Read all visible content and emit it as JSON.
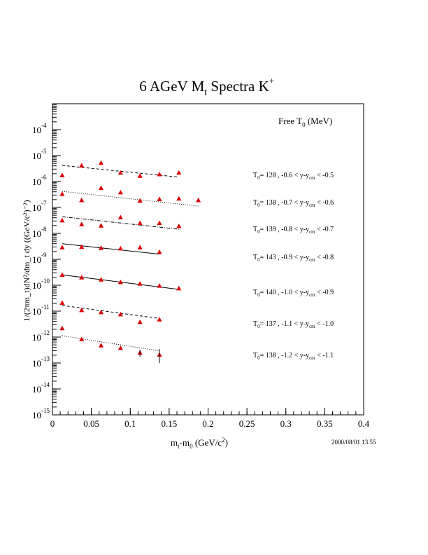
{
  "chart_data": {
    "type": "scatter",
    "title_main": "6 AGeV M",
    "title_sub": "t",
    "title_rest": " Spectra K",
    "title_sup": "+",
    "legend_title_main": "Free T",
    "legend_title_sub": "0",
    "legend_title_rest": " (MeV)",
    "xlabel_main": "m",
    "xlabel_sub1": "t",
    "xlabel_mid": "-m",
    "xlabel_sub2": "0",
    "xlabel_units": " (GeV/c",
    "xlabel_sup": "2",
    "xlabel_close": ")",
    "ylabel": "1/(2πm_t)dN²/dm_t dy ((GeV/c²)⁻²)",
    "timestamp": "2000/08/01   13.55",
    "xlim": [
      0,
      0.4
    ],
    "ylim_exp": [
      -15,
      -3
    ],
    "x_ticks": [
      "0",
      "0.05",
      "0.1",
      "0.15",
      "0.2",
      "0.25",
      "0.3",
      "0.35",
      "0.4"
    ],
    "x_tick_values": [
      0,
      0.05,
      0.1,
      0.15,
      0.2,
      0.25,
      0.3,
      0.35,
      0.4
    ],
    "y_ticks": [
      {
        "base": "10",
        "exp": "-4"
      },
      {
        "base": "10",
        "exp": "-5"
      },
      {
        "base": "10",
        "exp": "-6"
      },
      {
        "base": "10",
        "exp": "-7"
      },
      {
        "base": "10",
        "exp": "-8"
      },
      {
        "base": "10",
        "exp": "-9"
      },
      {
        "base": "10",
        "exp": "-10"
      },
      {
        "base": "10",
        "exp": "-11"
      },
      {
        "base": "10",
        "exp": "-12"
      },
      {
        "base": "10",
        "exp": "-13"
      },
      {
        "base": "10",
        "exp": "-14"
      },
      {
        "base": "10",
        "exp": "-15"
      }
    ],
    "y_tick_exponents": [
      -4,
      -5,
      -6,
      -7,
      -8,
      -9,
      -10,
      -11,
      -12,
      -13,
      -14,
      -15
    ],
    "marker_color": "#dd0000",
    "series": [
      {
        "T0": "128",
        "range": "-0.6 < y-y",
        "range_end": " < -0.5",
        "line_style": "dashed",
        "x": [
          0.0125,
          0.0375,
          0.0625,
          0.0875,
          0.1125,
          0.1375,
          0.1625
        ],
        "y_exp": [
          -5.76,
          -5.38,
          -5.28,
          -5.66,
          -5.78,
          -5.72,
          -5.66
        ],
        "fit_x": [
          0.0125,
          0.1625
        ],
        "fit_y_exp": [
          -5.38,
          -5.83
        ]
      },
      {
        "T0": "138",
        "range": "-0.7 < y-y",
        "range_end": " < -0.6",
        "line_style": "dotted",
        "x": [
          0.0125,
          0.0375,
          0.0625,
          0.0875,
          0.1125,
          0.1375,
          0.1625,
          0.1875
        ],
        "y_exp": [
          -6.48,
          -6.72,
          -6.25,
          -6.42,
          -6.74,
          -6.68,
          -6.66,
          -6.72
        ],
        "fit_x": [
          0.0125,
          0.1875
        ],
        "fit_y_exp": [
          -6.38,
          -6.95
        ]
      },
      {
        "T0": "139",
        "range": "-0.8 < y-y",
        "range_end": " < -0.7",
        "line_style": "dashdot",
        "x": [
          0.0125,
          0.0375,
          0.0625,
          0.0875,
          0.1125,
          0.1375,
          0.1625
        ],
        "y_exp": [
          -7.5,
          -7.65,
          -7.7,
          -7.38,
          -7.6,
          -7.6,
          -7.72
        ],
        "fit_x": [
          0.0125,
          0.1625
        ],
        "fit_y_exp": [
          -7.36,
          -7.84
        ]
      },
      {
        "T0": "143",
        "range": "-0.9 < y-y",
        "range_end": " < -0.8",
        "line_style": "solid",
        "x": [
          0.0125,
          0.0375,
          0.0625,
          0.0875,
          0.1125,
          0.1375
        ],
        "y_exp": [
          -8.54,
          -8.52,
          -8.56,
          -8.58,
          -8.54,
          -8.72
        ],
        "fit_x": [
          0.0125,
          0.1375
        ],
        "fit_y_exp": [
          -8.4,
          -8.8
        ]
      },
      {
        "T0": "140",
        "range": "-1.0 < y-y",
        "range_end": " < -0.9",
        "line_style": "solid",
        "x": [
          0.0125,
          0.0375,
          0.0625,
          0.0875,
          0.1125,
          0.1375,
          0.1625
        ],
        "y_exp": [
          -9.6,
          -9.7,
          -9.78,
          -9.88,
          -9.94,
          -10.02,
          -10.12
        ],
        "fit_x": [
          0.0125,
          0.1625
        ],
        "fit_y_exp": [
          -9.6,
          -10.16
        ]
      },
      {
        "T0": "137",
        "range": "-1.1 < y-y",
        "range_end": " < -1.0",
        "line_style": "dashed",
        "x": [
          0.0125,
          0.0375,
          0.0625,
          0.0875,
          0.1125,
          0.1375
        ],
        "y_exp": [
          -10.68,
          -10.96,
          -11.04,
          -11.12,
          -11.42,
          -11.32
        ],
        "fit_x": [
          0.0125,
          0.1375
        ],
        "fit_y_exp": [
          -10.78,
          -11.28
        ]
      },
      {
        "T0": "138",
        "range": "-1.2 < y-y",
        "range_end": " < -1.1",
        "line_style": "dotted",
        "x": [
          0.0125,
          0.0375,
          0.0625,
          0.0875,
          0.1125,
          0.1375
        ],
        "y_exp": [
          -11.66,
          -12.08,
          -12.32,
          -12.42,
          -12.6,
          -12.68
        ],
        "fit_x": [
          0.0125,
          0.1375
        ],
        "fit_y_exp": [
          -11.95,
          -12.53
        ]
      }
    ]
  }
}
